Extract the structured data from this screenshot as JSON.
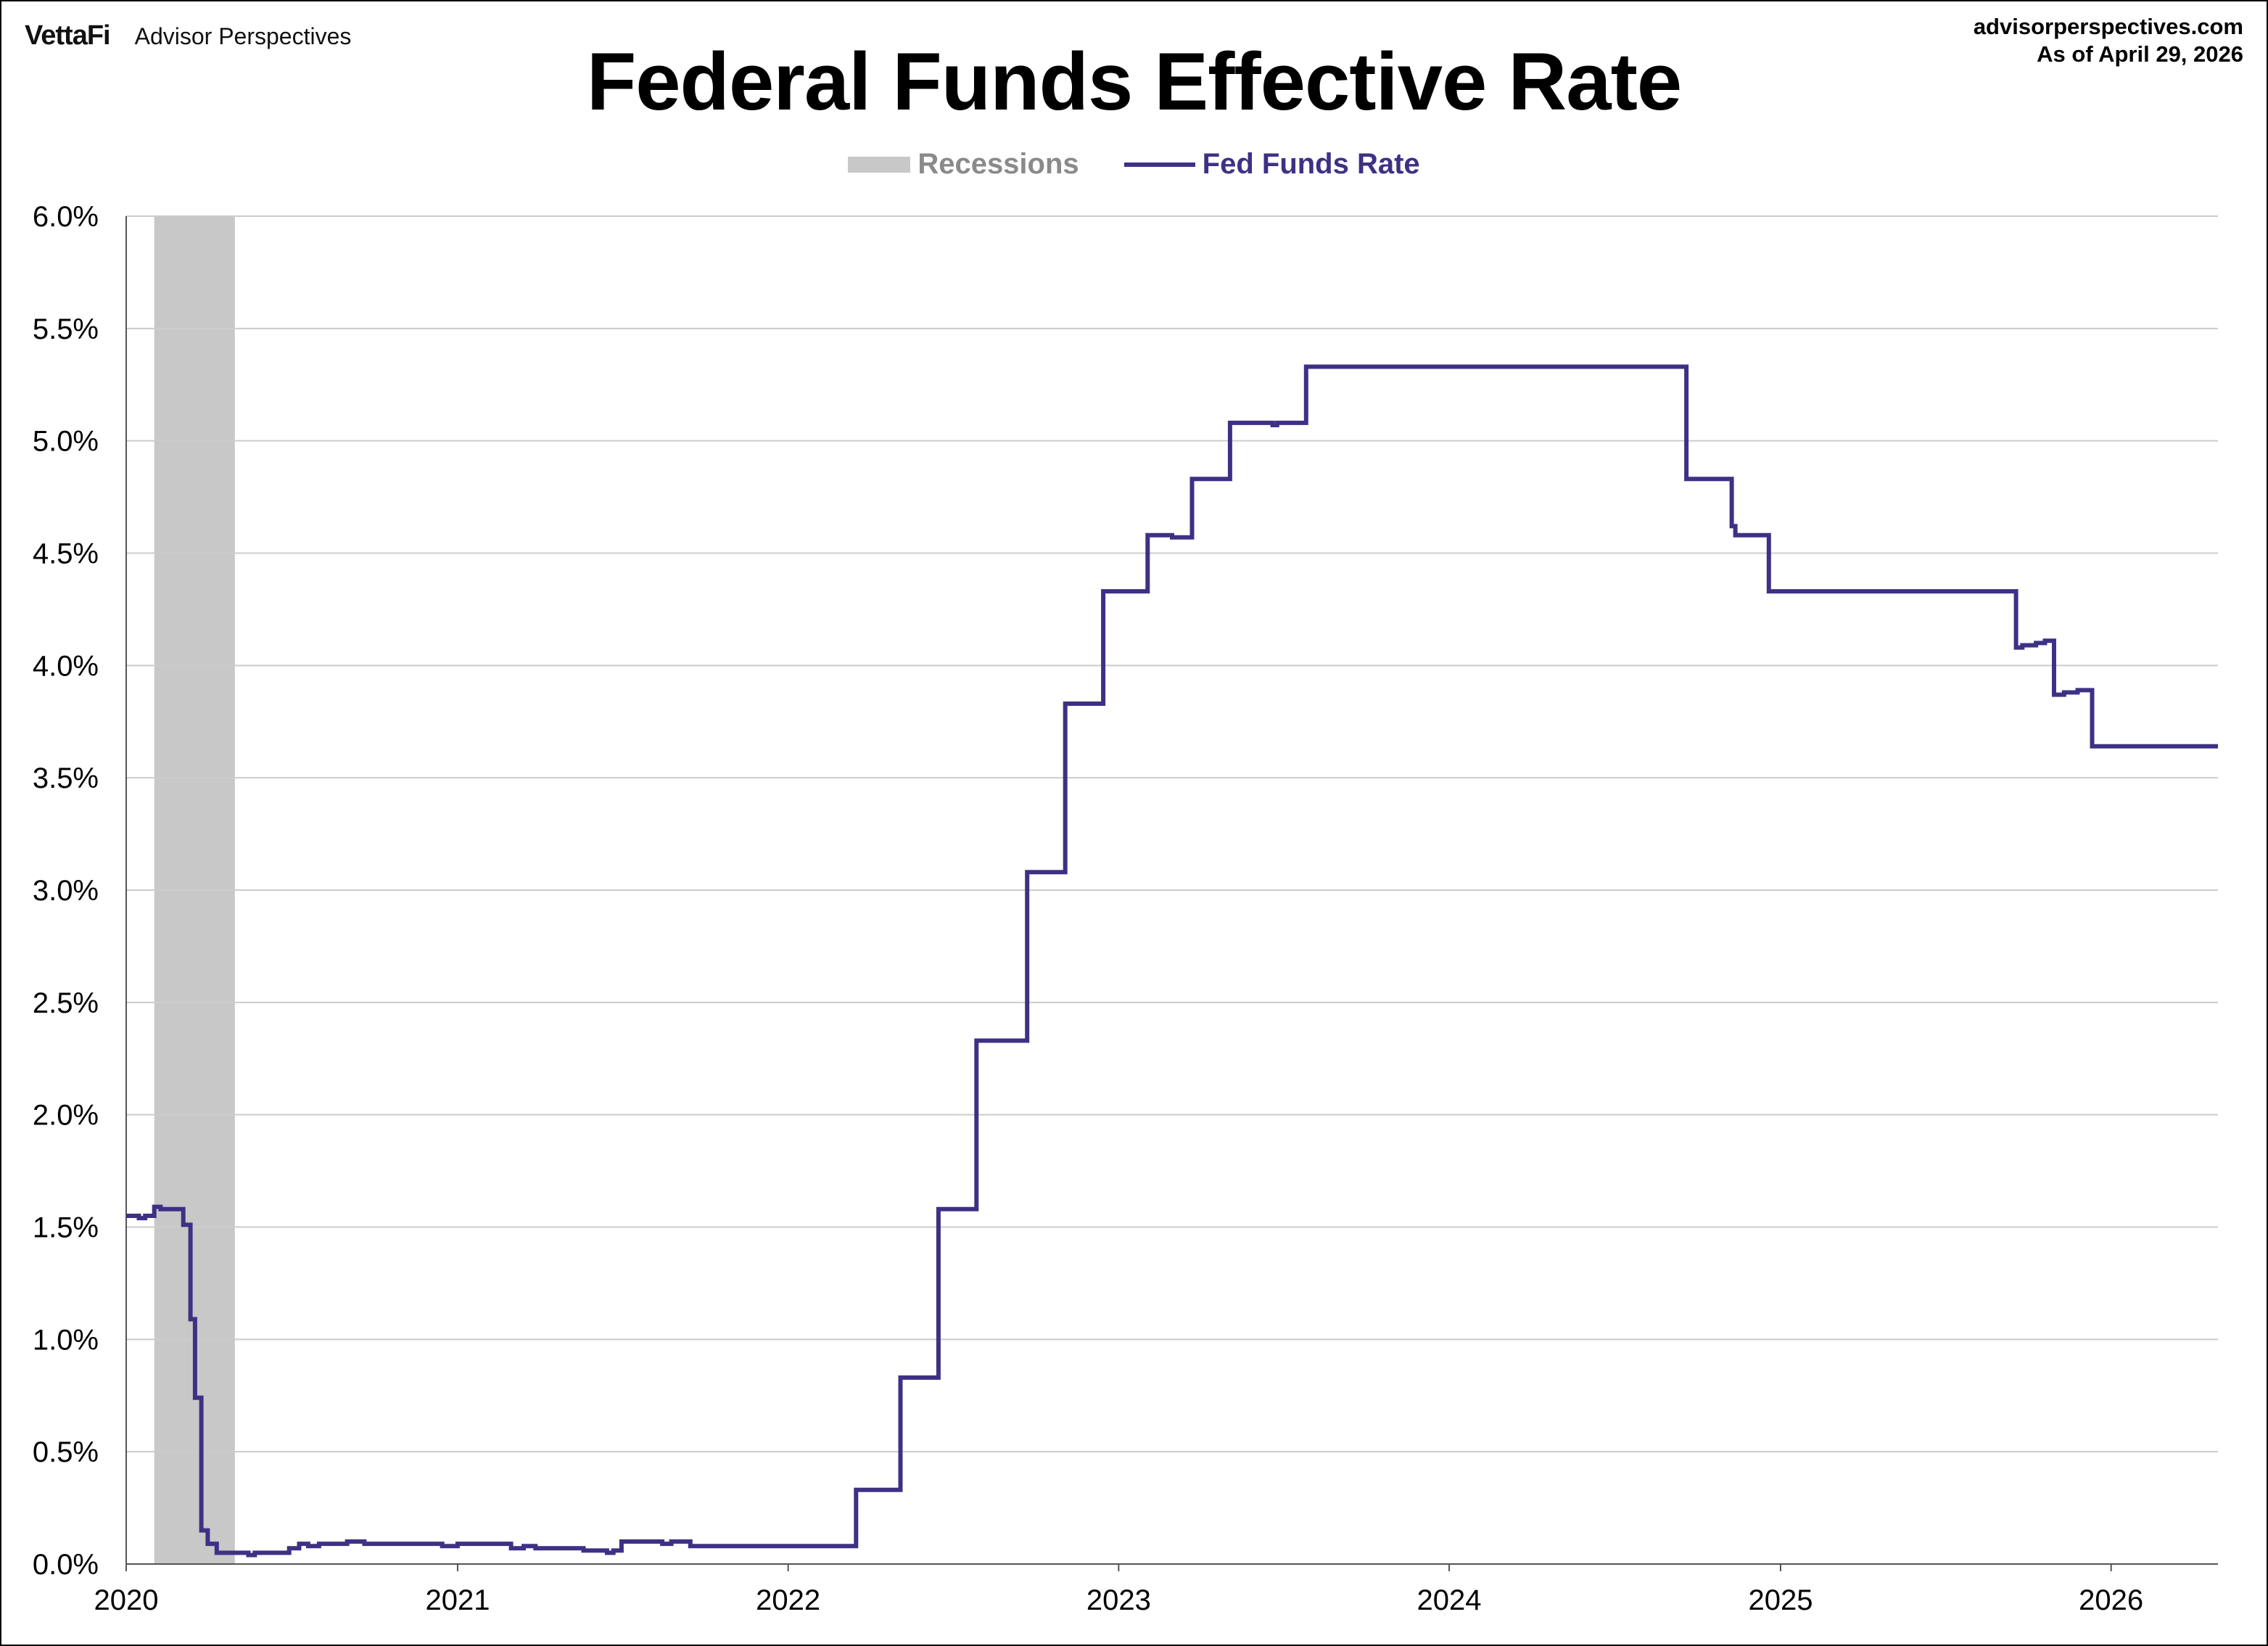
{
  "header": {
    "brand_logo": "VettaFi",
    "brand_name": "Advisor Perspectives",
    "site": "advisorperspectives.com",
    "as_of": "As of April 29, 2026"
  },
  "colors": {
    "line": "#3d3185",
    "recession": "#c8c8c8",
    "grid": "#cccccc"
  },
  "chart_data": {
    "type": "line",
    "title": "Federal Funds Effective Rate",
    "xlabel": "",
    "ylabel": "",
    "legend": [
      "Recessions",
      "Fed Funds Rate"
    ],
    "legend_placement": "top-center",
    "grid": true,
    "xlim": [
      "2020-01-01",
      "2026-04-29"
    ],
    "ylim": [
      0,
      6.0
    ],
    "y_ticks": [
      0.0,
      0.5,
      1.0,
      1.5,
      2.0,
      2.5,
      3.0,
      3.5,
      4.0,
      4.5,
      5.0,
      5.5,
      6.0
    ],
    "y_tick_labels": [
      "0.0%",
      "0.5%",
      "1.0%",
      "1.5%",
      "2.0%",
      "2.5%",
      "3.0%",
      "3.5%",
      "4.0%",
      "4.5%",
      "5.0%",
      "5.5%",
      "6.0%"
    ],
    "x_tick_labels": [
      "2020",
      "2021",
      "2022",
      "2023",
      "2024",
      "2025",
      "2026"
    ],
    "recessions": [
      {
        "start": "2020-02-01",
        "end": "2020-04-30"
      }
    ],
    "series": [
      {
        "name": "Fed Funds Rate",
        "points": [
          [
            "2020-01-01",
            1.55
          ],
          [
            "2020-01-15",
            1.54
          ],
          [
            "2020-01-22",
            1.55
          ],
          [
            "2020-02-01",
            1.59
          ],
          [
            "2020-02-08",
            1.58
          ],
          [
            "2020-03-04",
            1.51
          ],
          [
            "2020-03-12",
            1.09
          ],
          [
            "2020-03-17",
            0.74
          ],
          [
            "2020-03-24",
            0.15
          ],
          [
            "2020-03-31",
            0.09
          ],
          [
            "2020-04-10",
            0.05
          ],
          [
            "2020-05-15",
            0.04
          ],
          [
            "2020-05-22",
            0.05
          ],
          [
            "2020-06-29",
            0.07
          ],
          [
            "2020-07-10",
            0.09
          ],
          [
            "2020-07-20",
            0.08
          ],
          [
            "2020-08-01",
            0.09
          ],
          [
            "2020-09-01",
            0.1
          ],
          [
            "2020-09-20",
            0.09
          ],
          [
            "2020-12-15",
            0.08
          ],
          [
            "2021-01-01",
            0.09
          ],
          [
            "2021-03-01",
            0.07
          ],
          [
            "2021-03-15",
            0.08
          ],
          [
            "2021-03-28",
            0.07
          ],
          [
            "2021-05-20",
            0.06
          ],
          [
            "2021-06-15",
            0.05
          ],
          [
            "2021-06-22",
            0.06
          ],
          [
            "2021-07-01",
            0.1
          ],
          [
            "2021-08-15",
            0.09
          ],
          [
            "2021-08-25",
            0.1
          ],
          [
            "2021-09-15",
            0.08
          ],
          [
            "2022-03-17",
            0.33
          ],
          [
            "2022-05-05",
            0.83
          ],
          [
            "2022-06-16",
            1.58
          ],
          [
            "2022-07-28",
            2.33
          ],
          [
            "2022-09-22",
            3.08
          ],
          [
            "2022-11-03",
            3.83
          ],
          [
            "2022-12-15",
            4.33
          ],
          [
            "2023-02-02",
            4.58
          ],
          [
            "2023-03-01",
            4.57
          ],
          [
            "2023-03-23",
            4.83
          ],
          [
            "2023-05-04",
            5.08
          ],
          [
            "2023-06-20",
            5.07
          ],
          [
            "2023-06-25",
            5.08
          ],
          [
            "2023-07-27",
            5.33
          ],
          [
            "2024-09-19",
            4.83
          ],
          [
            "2024-11-08",
            4.62
          ],
          [
            "2024-11-12",
            4.58
          ],
          [
            "2024-12-19",
            4.33
          ],
          [
            "2025-09-18",
            4.08
          ],
          [
            "2025-09-25",
            4.09
          ],
          [
            "2025-10-10",
            4.1
          ],
          [
            "2025-10-20",
            4.11
          ],
          [
            "2025-10-30",
            3.87
          ],
          [
            "2025-11-10",
            3.88
          ],
          [
            "2025-11-25",
            3.89
          ],
          [
            "2025-12-11",
            3.64
          ],
          [
            "2026-04-29",
            3.64
          ]
        ]
      }
    ]
  }
}
